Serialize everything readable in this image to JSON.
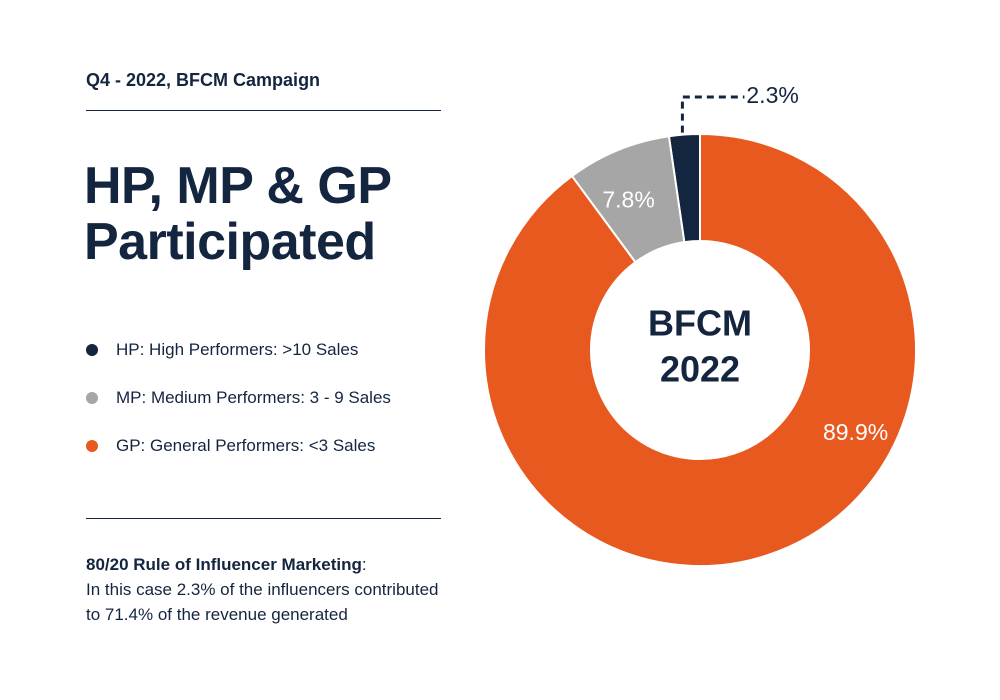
{
  "header": {
    "subtitle": "Q4 - 2022, BFCM Campaign",
    "title_line1": "HP, MP & GP",
    "title_line2": "Participated"
  },
  "legend": [
    {
      "label": "HP: High Performers: >10 Sales",
      "color": "#14253f"
    },
    {
      "label": "MP: Medium Performers: 3 - 9 Sales",
      "color": "#a6a6a6"
    },
    {
      "label": "GP: General Performers: <3 Sales",
      "color": "#e8591f"
    }
  ],
  "note": {
    "title": "80/20 Rule of Influencer Marketing",
    "title_suffix": ":",
    "line1": "In this case 2.3% of the influencers contributed",
    "line2": "to 71.4% of the revenue generated"
  },
  "chart_data": {
    "type": "pie",
    "donut": true,
    "center_label_line1": "BFCM",
    "center_label_line2": "2022",
    "categories": [
      "HP",
      "MP",
      "GP"
    ],
    "values": [
      2.3,
      7.8,
      89.9
    ],
    "labels": [
      "2.3%",
      "7.8%",
      "89.9%"
    ],
    "colors": [
      "#14253f",
      "#a6a6a6",
      "#e8591f"
    ],
    "start_angle": "top",
    "direction": "counterclockwise",
    "legend_position": "left"
  }
}
